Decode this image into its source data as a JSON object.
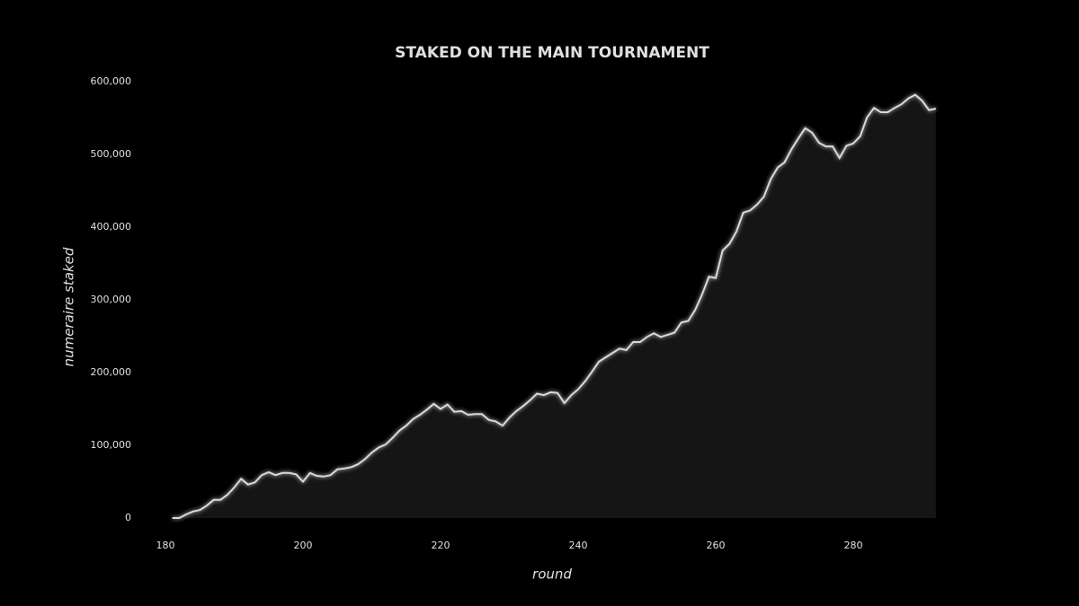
{
  "chart_data": {
    "type": "area",
    "title": "STAKED ON THE MAIN TOURNAMENT",
    "x_label": "round",
    "y_label": "numeraire staked",
    "x": [
      181,
      182,
      183,
      184,
      185,
      186,
      187,
      188,
      189,
      190,
      191,
      192,
      193,
      194,
      195,
      196,
      197,
      198,
      199,
      200,
      201,
      202,
      203,
      204,
      205,
      206,
      207,
      208,
      209,
      210,
      211,
      212,
      213,
      214,
      215,
      216,
      217,
      218,
      219,
      220,
      221,
      222,
      223,
      224,
      225,
      226,
      227,
      228,
      229,
      230,
      231,
      232,
      233,
      234,
      235,
      236,
      237,
      238,
      239,
      240,
      241,
      242,
      243,
      244,
      245,
      246,
      247,
      248,
      249,
      250,
      251,
      252,
      253,
      254,
      255,
      256,
      257,
      258,
      259,
      260,
      261,
      262,
      263,
      264,
      265,
      266,
      267,
      268,
      269,
      270,
      271,
      272,
      273,
      274,
      275,
      276,
      277,
      278,
      279,
      280,
      281,
      282,
      283,
      284,
      285,
      286,
      287,
      288,
      289,
      290,
      291,
      292
    ],
    "series": [
      {
        "name": "staked",
        "color": "#d9d9d9",
        "fill": "#151515",
        "values": [
          0,
          0,
          5000,
          9000,
          11000,
          17000,
          25000,
          25000,
          32000,
          42000,
          54000,
          46000,
          49000,
          59000,
          63000,
          59000,
          62000,
          62000,
          60000,
          50000,
          62000,
          58000,
          57000,
          59000,
          67000,
          68000,
          70000,
          74000,
          81000,
          90000,
          97000,
          101000,
          110000,
          120000,
          127000,
          136000,
          142000,
          149000,
          157000,
          150000,
          156000,
          146000,
          147000,
          142000,
          143000,
          143000,
          135000,
          133000,
          127000,
          138000,
          147000,
          154000,
          162000,
          171000,
          169000,
          173000,
          172000,
          158000,
          169000,
          177000,
          188000,
          201000,
          215000,
          221000,
          227000,
          233000,
          231000,
          242000,
          242000,
          249000,
          254000,
          249000,
          252000,
          255000,
          269000,
          271000,
          286000,
          307000,
          332000,
          330000,
          368000,
          377000,
          394000,
          420000,
          423000,
          431000,
          442000,
          466000,
          482000,
          489000,
          507000,
          522000,
          536000,
          530000,
          516000,
          511000,
          511000,
          495000,
          512000,
          515000,
          525000,
          551000,
          564000,
          558000,
          558000,
          564000,
          569000,
          577000,
          582000,
          574000,
          561000,
          563000
        ]
      }
    ],
    "xlim": [
      176,
      293
    ],
    "xticks": [
      180,
      200,
      220,
      240,
      260,
      280
    ],
    "ylim": [
      -20000,
      620000
    ],
    "yticks": [
      0,
      {
        "value": 100000,
        "label": "100,000"
      },
      {
        "value": 200000,
        "label": "200,000"
      },
      {
        "value": 300000,
        "label": "300,000"
      },
      {
        "value": 400000,
        "label": "400,000"
      },
      {
        "value": 500000,
        "label": "500,000"
      },
      {
        "value": 600000,
        "label": "600,000"
      }
    ]
  }
}
